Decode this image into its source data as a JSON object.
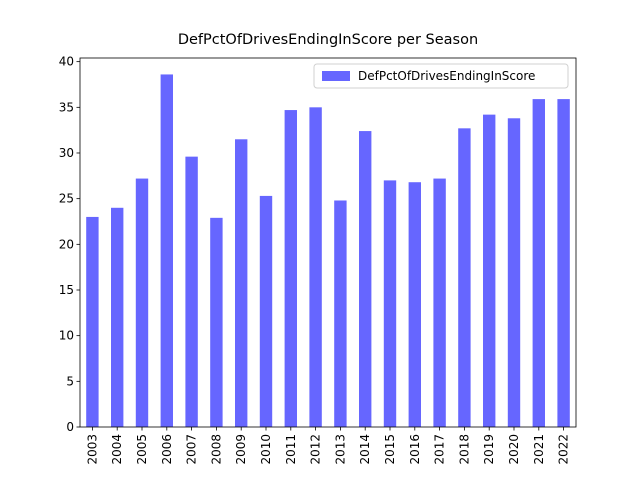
{
  "chart_data": {
    "type": "bar",
    "title": "DefPctOfDrivesEndingInScore per Season",
    "categories": [
      "2003",
      "2004",
      "2005",
      "2006",
      "2007",
      "2008",
      "2009",
      "2010",
      "2011",
      "2012",
      "2013",
      "2014",
      "2015",
      "2016",
      "2017",
      "2018",
      "2019",
      "2020",
      "2021",
      "2022"
    ],
    "series": [
      {
        "name": "DefPctOfDrivesEndingInScore",
        "color": "#6666ff",
        "values": [
          23.0,
          24.0,
          27.2,
          38.6,
          29.6,
          22.9,
          31.5,
          25.3,
          34.7,
          35.0,
          24.8,
          32.4,
          27.0,
          26.8,
          27.2,
          32.7,
          34.2,
          33.8,
          35.9,
          35.9
        ]
      }
    ],
    "ylim": [
      0,
      40.4
    ],
    "yticks": [
      0,
      5,
      10,
      15,
      20,
      25,
      30,
      35,
      40
    ],
    "legend": "upper right"
  }
}
